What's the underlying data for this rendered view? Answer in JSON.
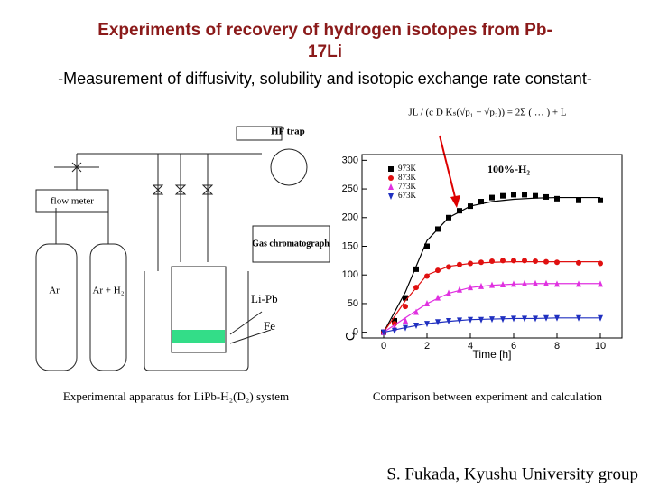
{
  "header": {
    "title": "Experiments of recovery of hydrogen isotopes from Pb-17Li",
    "subtitle": "-Measurement of diffusivity, solubility and isotopic exchange rate constant-"
  },
  "equation": "JL / (c D Kₛ(√p₁ − √p₂)) = 2Σ ( … ) + L",
  "apparatus": {
    "hf_trap": "HF trap",
    "flow_meter": "flow meter",
    "gas_chromatograph": "Gas chromatograph",
    "ar": "Ar",
    "ar_h2": "Ar + H₂",
    "lipb": "Li-Pb",
    "fe": "Fe"
  },
  "captions": {
    "left": "Experimental apparatus for LiPb-H₂(D₂) system",
    "right": "Comparison between experiment and calculation"
  },
  "footer": "S. Fukada, Kyushu University group",
  "chart_data": {
    "type": "scatter",
    "annotation": "100%-H₂",
    "x_label": "Time [h]",
    "y_label": "C",
    "x": [
      0,
      0.5,
      1,
      1.5,
      2,
      2.5,
      3,
      3.5,
      4,
      4.5,
      5,
      5.5,
      6,
      6.5,
      7,
      7.5,
      8,
      9,
      10
    ],
    "fit_x": [
      0,
      1,
      2,
      3,
      4,
      5,
      6,
      7,
      8,
      9,
      10
    ],
    "series": [
      {
        "name": "973K",
        "color": "#000000",
        "marker": "square",
        "values": [
          0,
          20,
          60,
          110,
          150,
          180,
          200,
          212,
          220,
          228,
          235,
          238,
          240,
          240,
          238,
          236,
          233,
          230,
          230
        ],
        "fit": [
          0,
          70,
          160,
          200,
          220,
          228,
          232,
          234,
          235,
          235,
          235
        ]
      },
      {
        "name": "873K",
        "color": "#e01010",
        "marker": "circle",
        "values": [
          0,
          15,
          45,
          78,
          98,
          108,
          114,
          118,
          120,
          122,
          124,
          125,
          125,
          125,
          124,
          123,
          122,
          121,
          120
        ],
        "fit": [
          0,
          55,
          100,
          115,
          120,
          122,
          123,
          123,
          123,
          123,
          123
        ]
      },
      {
        "name": "773K",
        "color": "#e030e0",
        "marker": "triangle-up",
        "values": [
          0,
          8,
          20,
          35,
          50,
          60,
          68,
          74,
          78,
          80,
          82,
          83,
          84,
          85,
          85,
          85,
          84,
          84,
          84
        ],
        "fit": [
          0,
          25,
          50,
          68,
          78,
          82,
          84,
          85,
          85,
          85,
          85
        ]
      },
      {
        "name": "673K",
        "color": "#2030c0",
        "marker": "triangle-down",
        "values": [
          0,
          3,
          8,
          12,
          15,
          18,
          20,
          21,
          22,
          22,
          23,
          23,
          24,
          24,
          24,
          25,
          25,
          25,
          25
        ],
        "fit": [
          0,
          8,
          15,
          19,
          22,
          23,
          24,
          24,
          25,
          25,
          25
        ]
      }
    ],
    "xlim": [
      -1,
      11
    ],
    "ylim": [
      -10,
      310
    ],
    "xticks": [
      0,
      2,
      4,
      6,
      8,
      10
    ],
    "yticks": [
      0,
      50,
      100,
      150,
      200,
      250,
      300
    ]
  }
}
